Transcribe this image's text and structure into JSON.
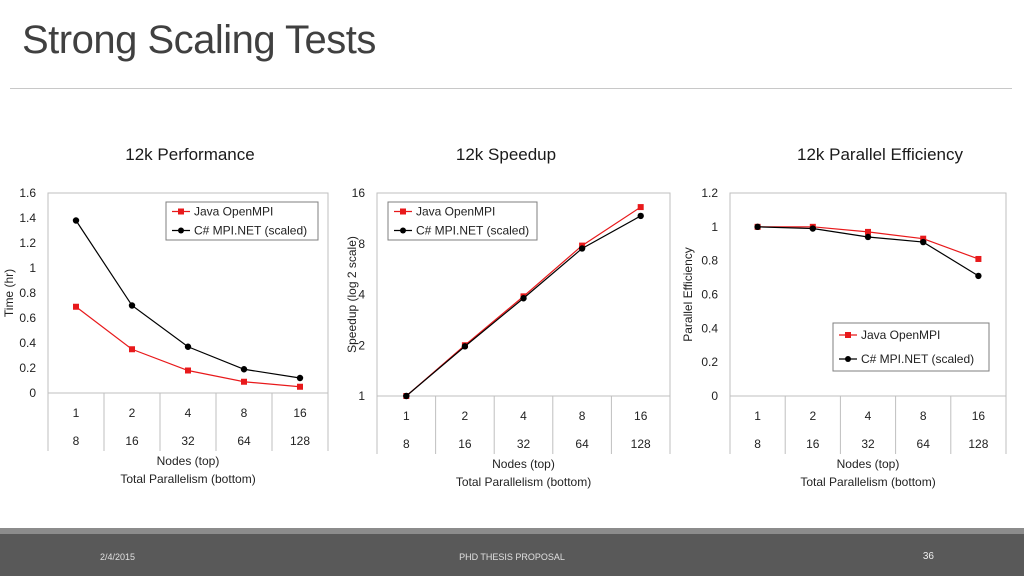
{
  "slide": {
    "title": "Strong Scaling Tests"
  },
  "footer": {
    "date": "2/4/2015",
    "center": "PHD THESIS PROPOSAL",
    "page": "36"
  },
  "chart_data": [
    {
      "type": "line",
      "title": "12k Performance",
      "ylabel": "Time (hr)",
      "xlabel_lines": [
        "Nodes (top)",
        "Total Parallelism (bottom)"
      ],
      "categories_top": [
        "1",
        "2",
        "4",
        "8",
        "16"
      ],
      "categories_bottom": [
        "8",
        "16",
        "32",
        "64",
        "128"
      ],
      "ylim": [
        0,
        1.6
      ],
      "yticks": [
        "0",
        "0.2",
        "0.4",
        "0.6",
        "0.8",
        "1",
        "1.2",
        "1.4",
        "1.6"
      ],
      "grid": false,
      "legend": "top-right",
      "series": [
        {
          "name": "Java OpenMPI",
          "color": "#e8191b",
          "marker": "square",
          "values": [
            0.69,
            0.35,
            0.18,
            0.09,
            0.05
          ]
        },
        {
          "name": "C# MPI.NET (scaled)",
          "color": "#000000",
          "marker": "circle",
          "values": [
            1.38,
            0.7,
            0.37,
            0.19,
            0.12
          ]
        }
      ]
    },
    {
      "type": "line",
      "title": "12k Speedup",
      "ylabel": "Speedup (log 2 scale)",
      "xlabel_lines": [
        "Nodes (top)",
        "Total Parallelism (bottom)"
      ],
      "categories_top": [
        "1",
        "2",
        "4",
        "8",
        "16"
      ],
      "categories_bottom": [
        "8",
        "16",
        "32",
        "64",
        "128"
      ],
      "ylim": [
        1,
        16
      ],
      "yscale": "log2",
      "yticks": [
        "1",
        "2",
        "4",
        "8",
        "16"
      ],
      "grid": false,
      "legend": "top-left",
      "series": [
        {
          "name": "Java OpenMPI",
          "color": "#e8191b",
          "marker": "square",
          "values": [
            1,
            2.0,
            3.9,
            7.8,
            13.2
          ]
        },
        {
          "name": "C# MPI.NET (scaled)",
          "color": "#000000",
          "marker": "circle",
          "values": [
            1,
            1.97,
            3.8,
            7.5,
            11.7
          ]
        }
      ]
    },
    {
      "type": "line",
      "title": "12k Parallel Efficiency",
      "ylabel": "Parallel Efficiency",
      "xlabel_lines": [
        "Nodes (top)",
        "Total Parallelism (bottom)"
      ],
      "categories_top": [
        "1",
        "2",
        "4",
        "8",
        "16"
      ],
      "categories_bottom": [
        "8",
        "16",
        "32",
        "64",
        "128"
      ],
      "ylim": [
        0,
        1.2
      ],
      "yticks": [
        "0",
        "0.2",
        "0.4",
        "0.6",
        "0.8",
        "1",
        "1.2"
      ],
      "grid": false,
      "legend": "bottom-right",
      "series": [
        {
          "name": "Java OpenMPI",
          "color": "#e8191b",
          "marker": "square",
          "values": [
            1.0,
            1.0,
            0.97,
            0.93,
            0.81
          ]
        },
        {
          "name": "C# MPI.NET (scaled)",
          "color": "#000000",
          "marker": "circle",
          "values": [
            1.0,
            0.99,
            0.94,
            0.91,
            0.71
          ]
        }
      ]
    }
  ]
}
